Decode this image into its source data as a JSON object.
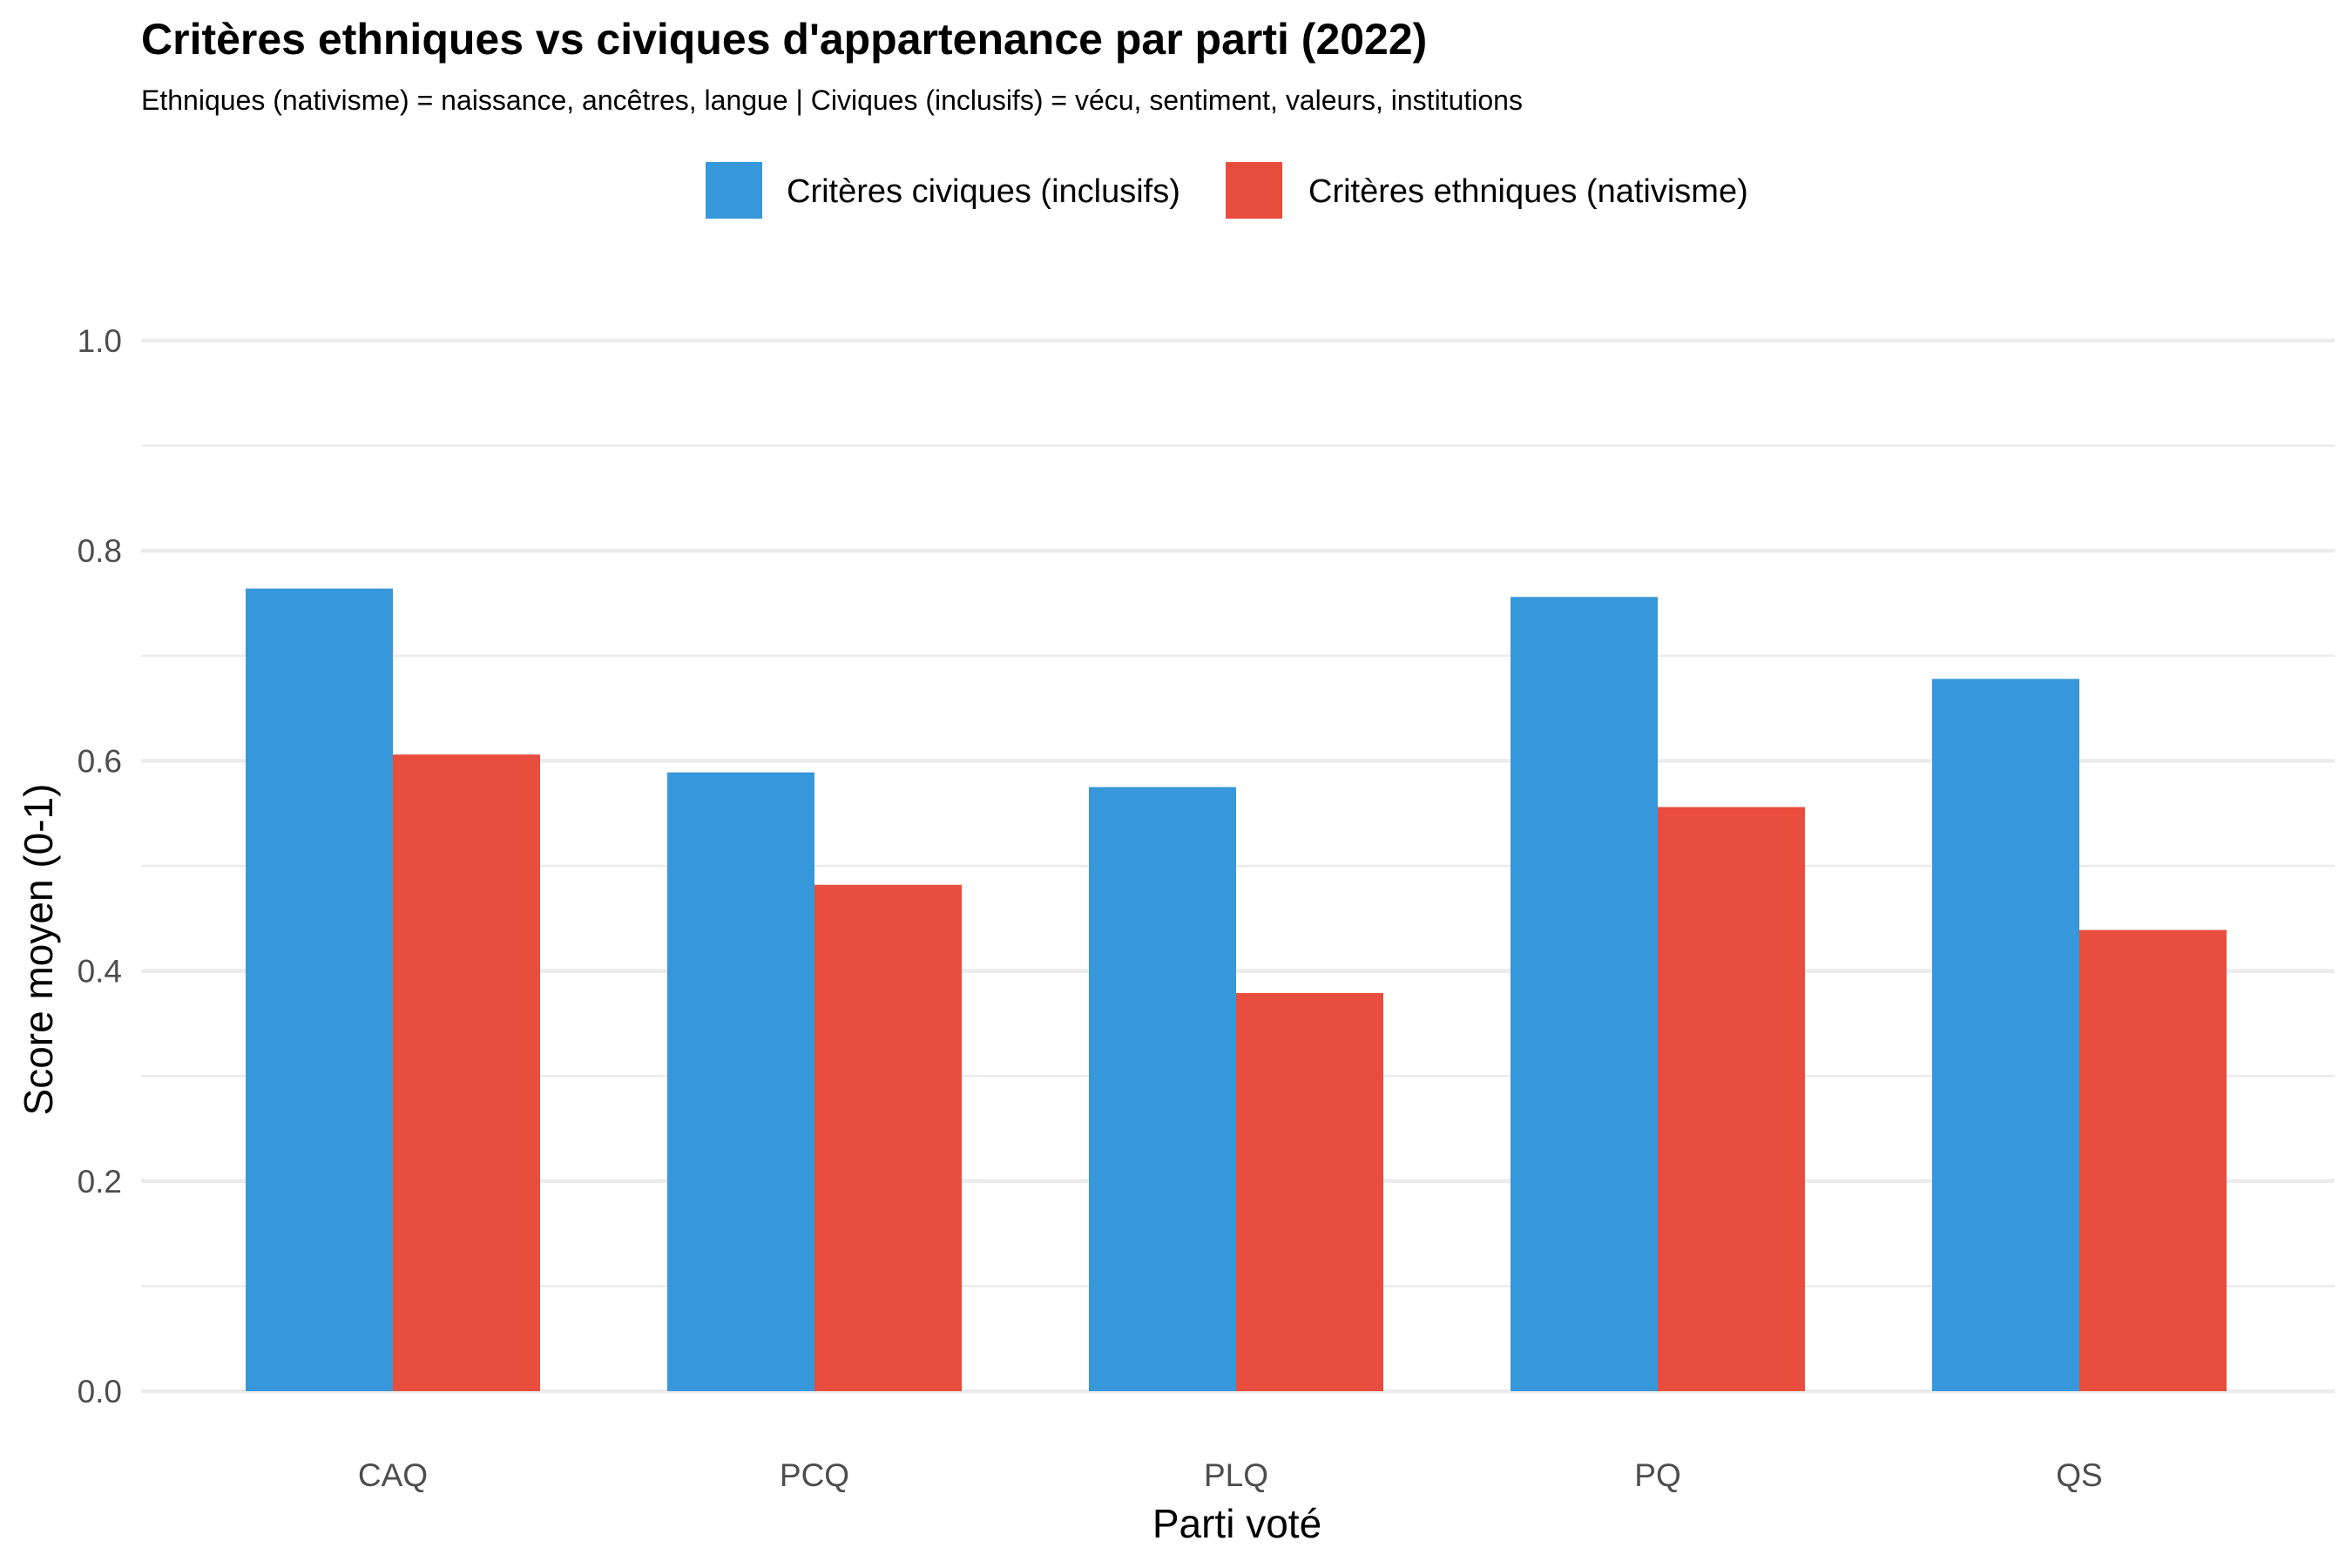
{
  "chart_data": {
    "type": "bar",
    "title": "Critères ethniques vs civiques d'appartenance par parti (2022)",
    "subtitle": "Ethniques (nativisme) = naissance, ancêtres, langue | Civiques (inclusifs) = vécu, sentiment, valeurs, institutions",
    "xlabel": "Parti voté",
    "ylabel": "Score moyen (0-1)",
    "ylim": [
      0,
      1.0
    ],
    "yticks": [
      "0.0",
      "0.2",
      "0.4",
      "0.6",
      "0.8",
      "1.0"
    ],
    "ytick_values": [
      0,
      0.2,
      0.4,
      0.6,
      0.8,
      1.0
    ],
    "minor_gridlines": [
      0.1,
      0.3,
      0.5,
      0.7,
      0.9
    ],
    "grid": true,
    "legend_position": "top",
    "categories": [
      "CAQ",
      "PCQ",
      "PLQ",
      "PQ",
      "QS"
    ],
    "series": [
      {
        "name": "Critères civiques (inclusifs)",
        "color": "#3797db",
        "values": [
          0.764,
          0.589,
          0.575,
          0.756,
          0.678
        ]
      },
      {
        "name": "Critères ethniques (nativisme)",
        "color": "#e84d3d",
        "values": [
          0.606,
          0.482,
          0.379,
          0.556,
          0.439
        ]
      }
    ]
  }
}
